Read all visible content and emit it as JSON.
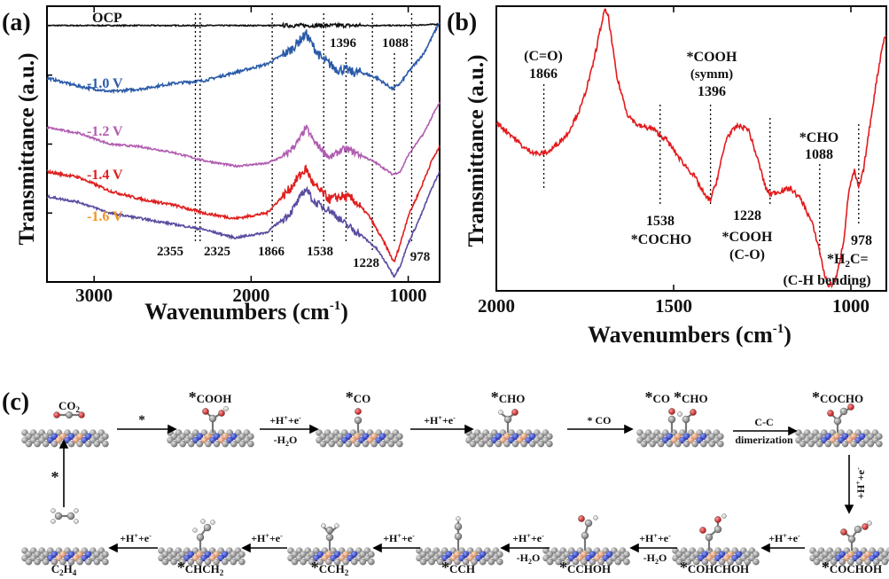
{
  "colors": {
    "ocp": "#111111",
    "v10": "#2a5aa8",
    "v12": "#b05cb0",
    "v14": "#e01e1e",
    "v16": "#5a4aa0",
    "v16_label": "#f0951f",
    "b_line": "#e31a1c",
    "atom_c": "#8c8c8c",
    "atom_n": "#2d3bb8",
    "atom_cu": "#e8a37a",
    "atom_o": "#d42a2a",
    "atom_h": "#f0f0f0"
  },
  "chart_data": [
    {
      "type": "line",
      "panel": "(a)",
      "xlabel": "Wavenumbers (cm",
      "xlabel_sup": "-1",
      "xlabel_tail": ")",
      "ylabel": "Transmittance (a.u.)",
      "xlim": [
        3300,
        800
      ],
      "x_ticks": [
        "3000",
        "2000",
        "1000"
      ],
      "x_tick_values": [
        3000,
        2000,
        1000
      ],
      "reference_lines": [
        2355,
        2325,
        1866,
        1538,
        1396,
        1228,
        1088,
        978
      ],
      "peak_labels_top": [
        "1396",
        "1088"
      ],
      "peak_labels_bottom": [
        "2355",
        "2325",
        "1866",
        "1538",
        "1228",
        "978"
      ],
      "series": [
        {
          "name": "OCP",
          "offset": 0.93,
          "points": [
            [
              3300,
              0.0
            ],
            [
              3000,
              0.0
            ],
            [
              2700,
              0.0
            ],
            [
              2400,
              0.0
            ],
            [
              2100,
              0.0
            ],
            [
              1800,
              0.0
            ],
            [
              1500,
              0.0
            ],
            [
              1200,
              0.0
            ],
            [
              1000,
              0.0
            ],
            [
              800,
              0.005
            ]
          ]
        },
        {
          "name": "-1.0 V",
          "offset": 0.74,
          "points": [
            [
              3300,
              0.0
            ],
            [
              3100,
              -0.03
            ],
            [
              2900,
              -0.05
            ],
            [
              2700,
              -0.04
            ],
            [
              2500,
              -0.02
            ],
            [
              2300,
              -0.01
            ],
            [
              2100,
              0.02
            ],
            [
              1900,
              0.05
            ],
            [
              1750,
              0.1
            ],
            [
              1650,
              0.16
            ],
            [
              1600,
              0.11
            ],
            [
              1550,
              0.07
            ],
            [
              1500,
              0.05
            ],
            [
              1450,
              0.03
            ],
            [
              1400,
              0.03
            ],
            [
              1350,
              0.02
            ],
            [
              1300,
              0.02
            ],
            [
              1200,
              0.0
            ],
            [
              1100,
              -0.04
            ],
            [
              1050,
              -0.02
            ],
            [
              1000,
              0.02
            ],
            [
              900,
              0.09
            ],
            [
              820,
              0.18
            ],
            [
              800,
              0.2
            ]
          ]
        },
        {
          "name": "-1.2 V",
          "offset": 0.56,
          "points": [
            [
              3300,
              0.0
            ],
            [
              3100,
              -0.02
            ],
            [
              2900,
              -0.06
            ],
            [
              2700,
              -0.07
            ],
            [
              2500,
              -0.09
            ],
            [
              2300,
              -0.12
            ],
            [
              2100,
              -0.14
            ],
            [
              1900,
              -0.13
            ],
            [
              1780,
              -0.1
            ],
            [
              1700,
              -0.05
            ],
            [
              1650,
              0.0
            ],
            [
              1600,
              -0.05
            ],
            [
              1500,
              -0.11
            ],
            [
              1420,
              -0.08
            ],
            [
              1380,
              -0.08
            ],
            [
              1300,
              -0.1
            ],
            [
              1200,
              -0.13
            ],
            [
              1100,
              -0.17
            ],
            [
              1050,
              -0.16
            ],
            [
              1000,
              -0.1
            ],
            [
              900,
              -0.02
            ],
            [
              830,
              0.06
            ],
            [
              800,
              0.09
            ]
          ]
        },
        {
          "name": "-1.4 V",
          "offset": 0.4,
          "points": [
            [
              3300,
              0.0
            ],
            [
              3100,
              -0.02
            ],
            [
              2900,
              -0.07
            ],
            [
              2700,
              -0.1
            ],
            [
              2500,
              -0.12
            ],
            [
              2300,
              -0.15
            ],
            [
              2100,
              -0.17
            ],
            [
              1900,
              -0.15
            ],
            [
              1750,
              -0.06
            ],
            [
              1700,
              -0.02
            ],
            [
              1650,
              0.01
            ],
            [
              1600,
              -0.05
            ],
            [
              1500,
              -0.1
            ],
            [
              1420,
              -0.09
            ],
            [
              1350,
              -0.1
            ],
            [
              1250,
              -0.16
            ],
            [
              1150,
              -0.26
            ],
            [
              1090,
              -0.33
            ],
            [
              1050,
              -0.26
            ],
            [
              1000,
              -0.16
            ],
            [
              920,
              -0.06
            ],
            [
              850,
              0.04
            ],
            [
              800,
              0.09
            ]
          ]
        },
        {
          "name": "-1.6 V",
          "offset": 0.31,
          "points": [
            [
              3300,
              0.0
            ],
            [
              3100,
              -0.02
            ],
            [
              2900,
              -0.06
            ],
            [
              2700,
              -0.08
            ],
            [
              2500,
              -0.1
            ],
            [
              2300,
              -0.12
            ],
            [
              2100,
              -0.15
            ],
            [
              1900,
              -0.13
            ],
            [
              1750,
              -0.06
            ],
            [
              1650,
              0.03
            ],
            [
              1600,
              -0.02
            ],
            [
              1500,
              -0.05
            ],
            [
              1400,
              -0.1
            ],
            [
              1300,
              -0.14
            ],
            [
              1200,
              -0.19
            ],
            [
              1120,
              -0.26
            ],
            [
              1090,
              -0.29
            ],
            [
              1050,
              -0.25
            ],
            [
              1000,
              -0.17
            ],
            [
              920,
              -0.07
            ],
            [
              850,
              0.03
            ],
            [
              800,
              0.09
            ]
          ]
        }
      ]
    },
    {
      "type": "line",
      "panel": "(b)",
      "xlabel": "Wavenumbers (cm",
      "xlabel_sup": "-1",
      "xlabel_tail": ")",
      "ylabel": "Transmittance (a.u.)",
      "xlim": [
        2000,
        900
      ],
      "x_ticks": [
        "2000",
        "1500",
        "1000"
      ],
      "x_tick_values": [
        2000,
        1500,
        1000
      ],
      "reference_lines": [
        1866,
        1538,
        1396,
        1228,
        1088,
        978
      ],
      "series": [
        {
          "name": "red",
          "points": [
            [
              2000,
              0.59
            ],
            [
              1960,
              0.55
            ],
            [
              1920,
              0.5
            ],
            [
              1880,
              0.48
            ],
            [
              1850,
              0.49
            ],
            [
              1800,
              0.55
            ],
            [
              1760,
              0.65
            ],
            [
              1730,
              0.78
            ],
            [
              1710,
              0.9
            ],
            [
              1695,
              0.985
            ],
            [
              1685,
              0.97
            ],
            [
              1660,
              0.75
            ],
            [
              1630,
              0.62
            ],
            [
              1600,
              0.58
            ],
            [
              1560,
              0.57
            ],
            [
              1520,
              0.53
            ],
            [
              1480,
              0.46
            ],
            [
              1440,
              0.4
            ],
            [
              1410,
              0.33
            ],
            [
              1396,
              0.32
            ],
            [
              1380,
              0.38
            ],
            [
              1350,
              0.54
            ],
            [
              1320,
              0.58
            ],
            [
              1290,
              0.57
            ],
            [
              1260,
              0.45
            ],
            [
              1240,
              0.36
            ],
            [
              1228,
              0.34
            ],
            [
              1200,
              0.35
            ],
            [
              1170,
              0.36
            ],
            [
              1140,
              0.32
            ],
            [
              1110,
              0.24
            ],
            [
              1090,
              0.15
            ],
            [
              1075,
              0.06
            ],
            [
              1065,
              0.02
            ],
            [
              1050,
              0.025
            ],
            [
              1040,
              0.05
            ],
            [
              1020,
              0.18
            ],
            [
              1005,
              0.36
            ],
            [
              990,
              0.42
            ],
            [
              978,
              0.36
            ],
            [
              965,
              0.42
            ],
            [
              950,
              0.55
            ],
            [
              930,
              0.72
            ],
            [
              910,
              0.87
            ],
            [
              900,
              0.9
            ]
          ]
        }
      ]
    }
  ],
  "panel_a": {
    "label": "(a)",
    "ocp_label": "OCP",
    "v10_label": "-1.0 V",
    "v12_label": "-1.2 V",
    "v14_label": "-1.4 V",
    "v16_label": "-1.6 V",
    "pk_1396": "1396",
    "pk_1088": "1088",
    "pk_2355": "2355",
    "pk_2325": "2325",
    "pk_1866": "1866",
    "pk_1538": "1538",
    "pk_1228": "1228",
    "pk_978": "978"
  },
  "panel_b": {
    "label": "(b)",
    "co_line1": "(C=O)",
    "co_line2": "1866",
    "cooh_line1": "*COOH",
    "cooh_line2": "(symm)",
    "cooh_line3": "1396",
    "cho_line1": "*CHO",
    "cho_line2": "1088",
    "b1538": "1538",
    "cocho": "*COCHO",
    "b1228": "1228",
    "cooh_co1": "*COOH",
    "cooh_co2": "(C-O)",
    "b978": "978",
    "h2c_star": "*H",
    "h2c_sub": "2",
    "h2c_tail": "C=",
    "ch_bending": "(C-H bending)"
  },
  "panel_c": {
    "label": "(c)",
    "co2": "CO",
    "co2_sub": "2",
    "cooh": "COOH",
    "co": "CO",
    "cho": "CHO",
    "co_cho_a": "CO",
    "co_cho_b": "CHO",
    "cocho": "COCHO",
    "cochoh": "COCHOH",
    "cohchoh": "COHCHOH",
    "cchoh": "CCHOH",
    "cch": "CCH",
    "cch2": "CCH",
    "chch2": "CHCH",
    "c2h4": "C",
    "star": "*",
    "step_star": "*",
    "step_hplus": "+H",
    "step_hplus_sup": "+",
    "step_hplus_tail": "+e",
    "step_e_sup": "-",
    "step_minus_h2o": "-H",
    "step_h2o_sub": "2",
    "step_h2o_tail": "O",
    "step_star_co": "* CO",
    "step_cc1": "C-C",
    "step_cc2": "dimerization",
    "sub2": "2",
    "sub4": "4"
  }
}
